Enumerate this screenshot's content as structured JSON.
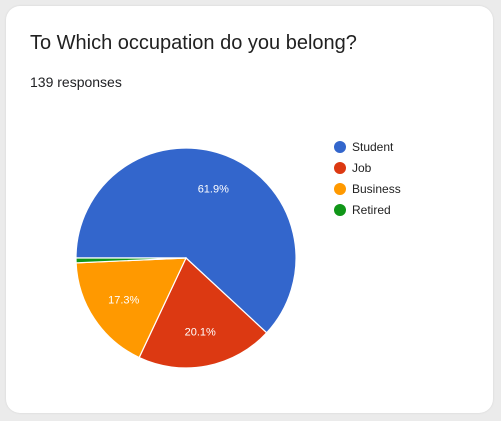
{
  "form": {
    "question": "To Which occupation do you belong?",
    "response_count": "139 responses"
  },
  "chart_data": {
    "type": "pie",
    "categories": [
      "Student",
      "Job",
      "Business",
      "Retired"
    ],
    "values": [
      61.9,
      20.1,
      17.3,
      0.7
    ],
    "labels": [
      "61.9%",
      "20.1%",
      "17.3%",
      ""
    ],
    "colors": [
      "#3366cc",
      "#dc3912",
      "#ff9900",
      "#109618"
    ],
    "legend": "right"
  }
}
